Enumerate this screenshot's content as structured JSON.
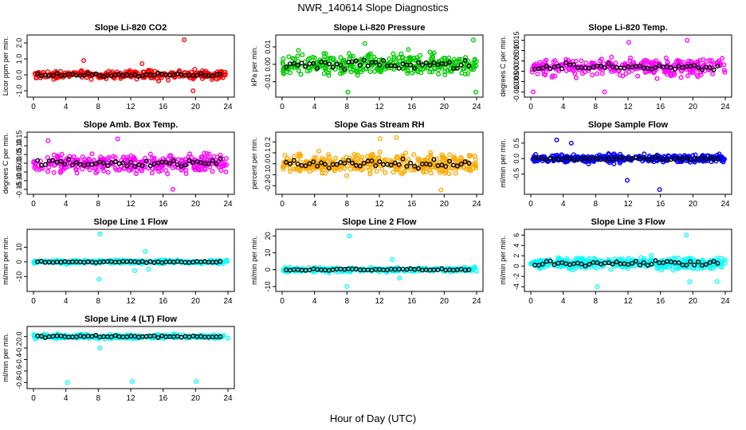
{
  "title": "NWR_140614  Slope Diagnostics",
  "xlabel": "Hour of Day (UTC)",
  "chart_data": [
    {
      "type": "scatter",
      "title": "Slope Li-820 CO2",
      "ylabel": "Licor ppm per min.",
      "xlim": [
        0,
        24
      ],
      "ylim": [
        -1.2,
        2.3
      ],
      "yticks": [
        -1.0,
        0.0,
        1.0,
        2.0
      ],
      "ytick_labels": [
        "-1.0",
        "0.0",
        "1.0",
        "2.0"
      ],
      "xticks": [
        0,
        4,
        8,
        12,
        16,
        20,
        24
      ],
      "color": "#ff0000",
      "center": 0.0,
      "spread": 0.25,
      "count": 300,
      "outliers": [
        [
          18.6,
          2.2
        ],
        [
          19.7,
          -1.0
        ],
        [
          6.2,
          0.9
        ],
        [
          13.4,
          0.7
        ]
      ]
    },
    {
      "type": "scatter",
      "title": "Slope Li-820 Pressure",
      "ylabel": "kPa per min.",
      "xlim": [
        0,
        24
      ],
      "ylim": [
        -0.017,
        0.015
      ],
      "yticks": [
        -0.01,
        0.0,
        0.01
      ],
      "ytick_labels": [
        "-0.01",
        "0.00",
        "0.01"
      ],
      "xticks": [
        0,
        4,
        8,
        12,
        16,
        20,
        24
      ],
      "color": "#00cc00",
      "center": 0.0,
      "spread": 0.0055,
      "count": 340,
      "outliers": [
        [
          8.1,
          -0.016
        ],
        [
          23.9,
          -0.016
        ],
        [
          23.6,
          0.014
        ],
        [
          10.2,
          0.012
        ]
      ]
    },
    {
      "type": "scatter",
      "title": "Slope Li-820 Temp.",
      "ylabel": "degrees C per min.",
      "xlim": [
        0,
        24
      ],
      "ylim": [
        -0.011,
        0.016
      ],
      "yticks": [
        -0.01,
        -0.005,
        0.0,
        0.005,
        0.01,
        0.015
      ],
      "ytick_labels": [
        "-0.010",
        "-0.005",
        "0.000",
        "0.005",
        "0.010",
        "0.015"
      ],
      "xticks": [
        0,
        4,
        8,
        12,
        16,
        20,
        24
      ],
      "color": "#ff00ff",
      "center": 0.002,
      "spread": 0.004,
      "count": 320,
      "outliers": [
        [
          19.3,
          0.015
        ],
        [
          9.1,
          -0.01
        ],
        [
          0.3,
          -0.01
        ],
        [
          12.1,
          0.014
        ]
      ]
    },
    {
      "type": "scatter",
      "title": "Slope Amb. Box Temp.",
      "ylabel": "degrees C per min.",
      "xlim": [
        0,
        24
      ],
      "ylim": [
        -0.16,
        0.16
      ],
      "yticks": [
        -0.15,
        -0.1,
        -0.05,
        0.0,
        0.05,
        0.1,
        0.15
      ],
      "ytick_labels": [
        "-0.15",
        "-0.10",
        "-0.05",
        "0.00",
        "0.05",
        "0.10",
        "0.15"
      ],
      "xticks": [
        0,
        4,
        8,
        12,
        16,
        20,
        24
      ],
      "color": "#ff00ff",
      "center": 0.0,
      "spread": 0.05,
      "count": 340,
      "outliers": [
        [
          17.2,
          -0.15
        ],
        [
          10.4,
          0.14
        ],
        [
          1.8,
          0.13
        ]
      ]
    },
    {
      "type": "scatter",
      "title": "Slope Gas Stream RH",
      "ylabel": "percent per min.",
      "xlim": [
        0,
        24
      ],
      "ylim": [
        -0.25,
        0.26
      ],
      "yticks": [
        -0.2,
        -0.1,
        0.0,
        0.1,
        0.2
      ],
      "ytick_labels": [
        "-0.2",
        "-0.1",
        "0.0",
        "0.1",
        "0.2"
      ],
      "xticks": [
        0,
        4,
        8,
        12,
        16,
        20,
        24
      ],
      "color": "#ffaa00",
      "center": 0.0,
      "spread": 0.09,
      "count": 380,
      "outliers": [
        [
          19.6,
          -0.24
        ],
        [
          14.1,
          0.24
        ],
        [
          12.1,
          0.23
        ]
      ]
    },
    {
      "type": "scatter",
      "title": "Slope Sample Flow",
      "ylabel": "ml/min per min.",
      "xlim": [
        0,
        24
      ],
      "ylim": [
        -1.05,
        0.75
      ],
      "yticks": [
        -0.5,
        0.0,
        0.5
      ],
      "ytick_labels": [
        "-0.5",
        "0.0",
        "0.5"
      ],
      "xticks": [
        0,
        4,
        8,
        12,
        16,
        20,
        24
      ],
      "color": "#0000ff",
      "center": 0.0,
      "spread": 0.12,
      "count": 340,
      "outliers": [
        [
          15.9,
          -1.0
        ],
        [
          3.2,
          0.6
        ],
        [
          5.0,
          0.5
        ],
        [
          11.9,
          -0.7
        ]
      ]
    },
    {
      "type": "scatter",
      "title": "Slope Line 1 Flow",
      "ylabel": "ml/min per min.",
      "xlim": [
        0,
        24
      ],
      "ylim": [
        -18,
        20
      ],
      "yticks": [
        -10,
        0,
        10
      ],
      "ytick_labels": [
        "-10",
        "0",
        "10"
      ],
      "xticks": [
        0,
        4,
        8,
        12,
        16,
        20,
        24
      ],
      "color": "#00ffff",
      "center": 0.0,
      "spread": 1.2,
      "count": 260,
      "outliers": [
        [
          8.2,
          19
        ],
        [
          8.1,
          -12
        ],
        [
          13.8,
          7
        ],
        [
          12.5,
          -6
        ],
        [
          14.2,
          -5
        ]
      ]
    },
    {
      "type": "scatter",
      "title": "Slope Line 2 Flow",
      "ylabel": "ml/min per min.",
      "xlim": [
        0,
        24
      ],
      "ylim": [
        -11,
        22
      ],
      "yticks": [
        -10,
        0,
        10,
        20
      ],
      "ytick_labels": [
        "-10",
        "0",
        "10",
        "20"
      ],
      "xticks": [
        0,
        4,
        8,
        12,
        16,
        20,
        24
      ],
      "color": "#00ffff",
      "center": 0.0,
      "spread": 1.2,
      "count": 260,
      "outliers": [
        [
          8.3,
          20
        ],
        [
          8.0,
          -10
        ],
        [
          13.6,
          6
        ],
        [
          14.5,
          -5
        ]
      ]
    },
    {
      "type": "scatter",
      "title": "Slope Line 3 Flow",
      "ylabel": "ml/min per min.",
      "xlim": [
        0,
        24
      ],
      "ylim": [
        -4.3,
        6.5
      ],
      "yticks": [
        -4,
        -2,
        0,
        2,
        4,
        6
      ],
      "ytick_labels": [
        "-4",
        "-2",
        "0",
        "2",
        "4",
        "6"
      ],
      "xticks": [
        0,
        4,
        8,
        12,
        16,
        20,
        24
      ],
      "color": "#00ffff",
      "center": 0.5,
      "spread": 1.0,
      "count": 380,
      "outliers": [
        [
          19.2,
          6.0
        ],
        [
          8.2,
          -4.0
        ],
        [
          19.6,
          -3.0
        ],
        [
          23.0,
          -3.0
        ]
      ]
    },
    {
      "type": "scatter",
      "title": "Slope Line 4 (LT) Flow",
      "ylabel": "ml/min per min.",
      "xlim": [
        0,
        24
      ],
      "ylim": [
        -0.85,
        0.12
      ],
      "yticks": [
        -0.8,
        -0.6,
        -0.4,
        -0.2,
        0.0
      ],
      "ytick_labels": [
        "-0.8",
        "-0.6",
        "-0.4",
        "-0.2",
        "0.0"
      ],
      "xticks": [
        0,
        4,
        8,
        12,
        16,
        20,
        24
      ],
      "color": "#00ffff",
      "center": 0.0,
      "spread": 0.035,
      "count": 320,
      "outliers": [
        [
          4.2,
          -0.8
        ],
        [
          12.2,
          -0.78
        ],
        [
          20.1,
          -0.78
        ],
        [
          8.2,
          -0.2
        ]
      ]
    }
  ]
}
